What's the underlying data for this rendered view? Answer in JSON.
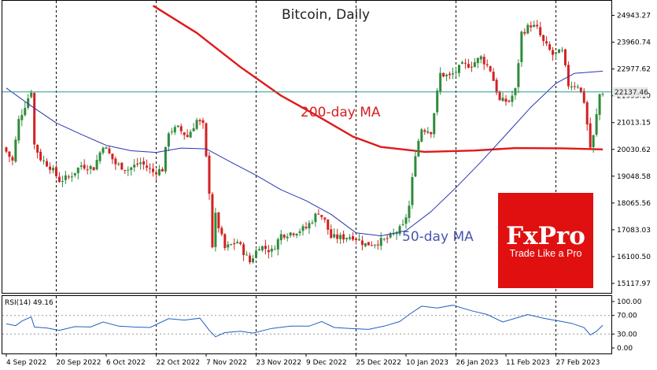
{
  "chart_data": [
    {
      "type": "candlestick",
      "title": "Bitcoin, Daily",
      "y_ticks": [
        "24943.27",
        "23960.74",
        "22977.62",
        "21995.10",
        "21013.15",
        "20030.62",
        "19048.58",
        "18065.56",
        "17083.03",
        "16100.50",
        "15117.97"
      ],
      "ylim": [
        14800,
        25450
      ],
      "x_ticks": [
        "4 Sep 2022",
        "20 Sep 2022",
        "6 Oct 2022",
        "22 Oct 2022",
        "7 Nov 2022",
        "23 Nov 2022",
        "9 Dec 2022",
        "25 Dec 2022",
        "10 Jan 2023",
        "26 Jan 2023",
        "11 Feb 2023",
        "27 Feb 2023"
      ],
      "grid": "vertical dashed at every other date tick",
      "current_price": "22137.46",
      "candle_colors": {
        "up": "#2e8b3a",
        "down": "#d42020"
      },
      "close_path": [
        {
          "date": "2022-09-04",
          "close": 19950
        },
        {
          "date": "2022-09-06",
          "close": 19600
        },
        {
          "date": "2022-09-08",
          "close": 21100
        },
        {
          "date": "2022-09-10",
          "close": 21650
        },
        {
          "date": "2022-09-12",
          "close": 22200
        },
        {
          "date": "2022-09-13",
          "close": 20200
        },
        {
          "date": "2022-09-15",
          "close": 19700
        },
        {
          "date": "2022-09-18",
          "close": 19400
        },
        {
          "date": "2022-09-21",
          "close": 18900
        },
        {
          "date": "2022-09-24",
          "close": 19000
        },
        {
          "date": "2022-09-28",
          "close": 19450
        },
        {
          "date": "2022-10-02",
          "close": 19350
        },
        {
          "date": "2022-10-05",
          "close": 20200
        },
        {
          "date": "2022-10-09",
          "close": 19500
        },
        {
          "date": "2022-10-13",
          "close": 19300
        },
        {
          "date": "2022-10-17",
          "close": 19550
        },
        {
          "date": "2022-10-21",
          "close": 19200
        },
        {
          "date": "2022-10-24",
          "close": 19300
        },
        {
          "date": "2022-10-26",
          "close": 20700
        },
        {
          "date": "2022-10-29",
          "close": 20800
        },
        {
          "date": "2022-11-01",
          "close": 20500
        },
        {
          "date": "2022-11-04",
          "close": 21100
        },
        {
          "date": "2022-11-06",
          "close": 20900
        },
        {
          "date": "2022-11-08",
          "close": 18500
        },
        {
          "date": "2022-11-09",
          "close": 16500
        },
        {
          "date": "2022-11-10",
          "close": 17600
        },
        {
          "date": "2022-11-13",
          "close": 16400
        },
        {
          "date": "2022-11-17",
          "close": 16650
        },
        {
          "date": "2022-11-21",
          "close": 15900
        },
        {
          "date": "2022-11-24",
          "close": 16500
        },
        {
          "date": "2022-11-28",
          "close": 16300
        },
        {
          "date": "2022-12-01",
          "close": 16900
        },
        {
          "date": "2022-12-05",
          "close": 17000
        },
        {
          "date": "2022-12-09",
          "close": 17150
        },
        {
          "date": "2022-12-13",
          "close": 17750
        },
        {
          "date": "2022-12-15",
          "close": 17400
        },
        {
          "date": "2022-12-17",
          "close": 16800
        },
        {
          "date": "2022-12-20",
          "close": 16800
        },
        {
          "date": "2022-12-24",
          "close": 16850
        },
        {
          "date": "2022-12-28",
          "close": 16550
        },
        {
          "date": "2022-12-31",
          "close": 16600
        },
        {
          "date": "2023-01-03",
          "close": 16700
        },
        {
          "date": "2023-01-06",
          "close": 16900
        },
        {
          "date": "2023-01-09",
          "close": 17200
        },
        {
          "date": "2023-01-11",
          "close": 17950
        },
        {
          "date": "2023-01-13",
          "close": 19900
        },
        {
          "date": "2023-01-15",
          "close": 20800
        },
        {
          "date": "2023-01-18",
          "close": 20700
        },
        {
          "date": "2023-01-21",
          "close": 22800
        },
        {
          "date": "2023-01-24",
          "close": 22700
        },
        {
          "date": "2023-01-28",
          "close": 23100
        },
        {
          "date": "2023-01-31",
          "close": 23150
        },
        {
          "date": "2023-02-03",
          "close": 23400
        },
        {
          "date": "2023-02-06",
          "close": 22950
        },
        {
          "date": "2023-02-09",
          "close": 21800
        },
        {
          "date": "2023-02-12",
          "close": 21800
        },
        {
          "date": "2023-02-14",
          "close": 22200
        },
        {
          "date": "2023-02-16",
          "close": 24300
        },
        {
          "date": "2023-02-19",
          "close": 24600
        },
        {
          "date": "2023-02-21",
          "close": 24450
        },
        {
          "date": "2023-02-23",
          "close": 23950
        },
        {
          "date": "2023-02-26",
          "close": 23500
        },
        {
          "date": "2023-03-01",
          "close": 23600
        },
        {
          "date": "2023-03-03",
          "close": 22400
        },
        {
          "date": "2023-03-06",
          "close": 22400
        },
        {
          "date": "2023-03-08",
          "close": 21800
        },
        {
          "date": "2023-03-10",
          "close": 20100
        },
        {
          "date": "2023-03-11",
          "close": 20500
        },
        {
          "date": "2023-03-13",
          "close": 22050
        },
        {
          "date": "2023-03-14",
          "close": 22137
        }
      ],
      "series": [
        {
          "name": "200-day MA",
          "color": "#e01818",
          "points": [
            {
              "date": "2022-10-21",
              "value": 25300
            },
            {
              "date": "2022-11-04",
              "value": 24300
            },
            {
              "date": "2022-11-18",
              "value": 23050
            },
            {
              "date": "2022-12-01",
              "value": 22000
            },
            {
              "date": "2022-12-12",
              "value": 21300
            },
            {
              "date": "2022-12-24",
              "value": 20500
            },
            {
              "date": "2023-01-02",
              "value": 20120
            },
            {
              "date": "2023-01-16",
              "value": 19940
            },
            {
              "date": "2023-02-01",
              "value": 19990
            },
            {
              "date": "2023-02-14",
              "value": 20080
            },
            {
              "date": "2023-03-01",
              "value": 20070
            },
            {
              "date": "2023-03-14",
              "value": 20030
            }
          ]
        },
        {
          "name": "50-day MA",
          "color": "#2a35b0",
          "points": [
            {
              "date": "2022-09-04",
              "value": 22280
            },
            {
              "date": "2022-09-12",
              "value": 21620
            },
            {
              "date": "2022-09-20",
              "value": 21000
            },
            {
              "date": "2022-09-28",
              "value": 20580
            },
            {
              "date": "2022-10-06",
              "value": 20180
            },
            {
              "date": "2022-10-14",
              "value": 19980
            },
            {
              "date": "2022-10-22",
              "value": 19920
            },
            {
              "date": "2022-10-30",
              "value": 20080
            },
            {
              "date": "2022-11-07",
              "value": 20050
            },
            {
              "date": "2022-11-15",
              "value": 19560
            },
            {
              "date": "2022-11-23",
              "value": 19080
            },
            {
              "date": "2022-12-01",
              "value": 18550
            },
            {
              "date": "2022-12-09",
              "value": 18150
            },
            {
              "date": "2022-12-17",
              "value": 17650
            },
            {
              "date": "2022-12-25",
              "value": 16970
            },
            {
              "date": "2023-01-02",
              "value": 16860
            },
            {
              "date": "2023-01-10",
              "value": 17050
            },
            {
              "date": "2023-01-18",
              "value": 17750
            },
            {
              "date": "2023-01-26",
              "value": 18630
            },
            {
              "date": "2023-02-03",
              "value": 19570
            },
            {
              "date": "2023-02-11",
              "value": 20570
            },
            {
              "date": "2023-02-19",
              "value": 21580
            },
            {
              "date": "2023-02-27",
              "value": 22450
            },
            {
              "date": "2023-03-05",
              "value": 22820
            },
            {
              "date": "2023-03-14",
              "value": 22900
            }
          ]
        }
      ],
      "annotations": [
        "200-day MA",
        "50-day MA"
      ]
    },
    {
      "type": "line",
      "title": "RSI(14) 49.16",
      "series_color": "#2060c0",
      "y_ticks": [
        "100.00",
        "70.00",
        "30.00",
        "0.00"
      ],
      "ylim": [
        0,
        100
      ],
      "reference_lines": [
        70,
        30
      ],
      "points": [
        {
          "date": "2022-09-04",
          "value": 52
        },
        {
          "date": "2022-09-07",
          "value": 48
        },
        {
          "date": "2022-09-09",
          "value": 58
        },
        {
          "date": "2022-09-12",
          "value": 67
        },
        {
          "date": "2022-09-13",
          "value": 45
        },
        {
          "date": "2022-09-17",
          "value": 43
        },
        {
          "date": "2022-09-21",
          "value": 38
        },
        {
          "date": "2022-09-26",
          "value": 46
        },
        {
          "date": "2022-10-01",
          "value": 45
        },
        {
          "date": "2022-10-05",
          "value": 56
        },
        {
          "date": "2022-10-10",
          "value": 47
        },
        {
          "date": "2022-10-15",
          "value": 45
        },
        {
          "date": "2022-10-20",
          "value": 44
        },
        {
          "date": "2022-10-26",
          "value": 63
        },
        {
          "date": "2022-10-31",
          "value": 60
        },
        {
          "date": "2022-11-05",
          "value": 64
        },
        {
          "date": "2022-11-08",
          "value": 38
        },
        {
          "date": "2022-11-10",
          "value": 24
        },
        {
          "date": "2022-11-13",
          "value": 33
        },
        {
          "date": "2022-11-18",
          "value": 36
        },
        {
          "date": "2022-11-22",
          "value": 32
        },
        {
          "date": "2022-11-28",
          "value": 42
        },
        {
          "date": "2022-12-04",
          "value": 47
        },
        {
          "date": "2022-12-10",
          "value": 47
        },
        {
          "date": "2022-12-14",
          "value": 57
        },
        {
          "date": "2022-12-18",
          "value": 44
        },
        {
          "date": "2022-12-23",
          "value": 42
        },
        {
          "date": "2022-12-29",
          "value": 40
        },
        {
          "date": "2023-01-03",
          "value": 47
        },
        {
          "date": "2023-01-08",
          "value": 57
        },
        {
          "date": "2023-01-11",
          "value": 72
        },
        {
          "date": "2023-01-15",
          "value": 90
        },
        {
          "date": "2023-01-20",
          "value": 86
        },
        {
          "date": "2023-01-25",
          "value": 92
        },
        {
          "date": "2023-01-31",
          "value": 80
        },
        {
          "date": "2023-02-05",
          "value": 72
        },
        {
          "date": "2023-02-10",
          "value": 56
        },
        {
          "date": "2023-02-15",
          "value": 66
        },
        {
          "date": "2023-02-18",
          "value": 72
        },
        {
          "date": "2023-02-23",
          "value": 64
        },
        {
          "date": "2023-02-28",
          "value": 58
        },
        {
          "date": "2023-03-04",
          "value": 53
        },
        {
          "date": "2023-03-08",
          "value": 44
        },
        {
          "date": "2023-03-10",
          "value": 28
        },
        {
          "date": "2023-03-12",
          "value": 36
        },
        {
          "date": "2023-03-14",
          "value": 49
        }
      ]
    }
  ],
  "logo": {
    "brand": "FxPro",
    "tagline": "Trade Like a Pro",
    "color": "#e01010"
  }
}
